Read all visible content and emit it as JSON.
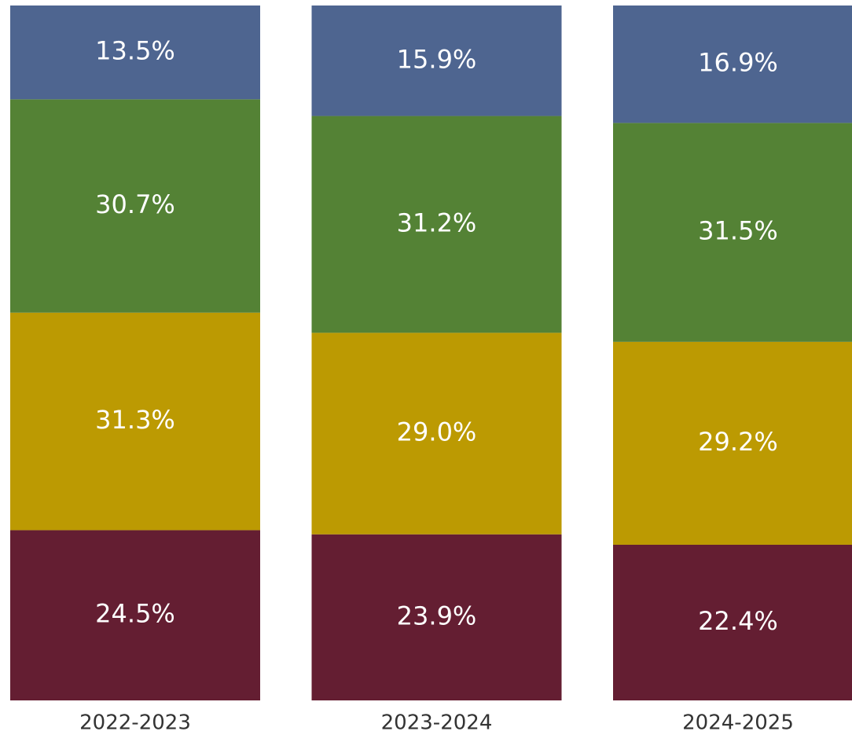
{
  "chart_data": {
    "type": "stacked_bar",
    "categories": [
      "2022-2023",
      "2023-2024",
      "2024-2025"
    ],
    "series": [
      {
        "color": "#641e32",
        "values": [
          24.5,
          23.9,
          22.4
        ],
        "value_labels": [
          "24.5%",
          "23.9%",
          "22.4%"
        ]
      },
      {
        "color": "#bc9a02",
        "values": [
          31.3,
          29.0,
          29.2
        ],
        "value_labels": [
          "31.3%",
          "29.0%",
          "29.2%"
        ]
      },
      {
        "color": "#548235",
        "values": [
          30.7,
          31.2,
          31.5
        ],
        "value_labels": [
          "30.7%",
          "31.2%",
          "31.5%"
        ]
      },
      {
        "color": "#4e6590",
        "values": [
          13.5,
          15.9,
          16.9
        ],
        "value_labels": [
          "13.5%",
          "15.9%",
          "16.9%"
        ]
      }
    ],
    "ylim": [
      0,
      100
    ]
  }
}
